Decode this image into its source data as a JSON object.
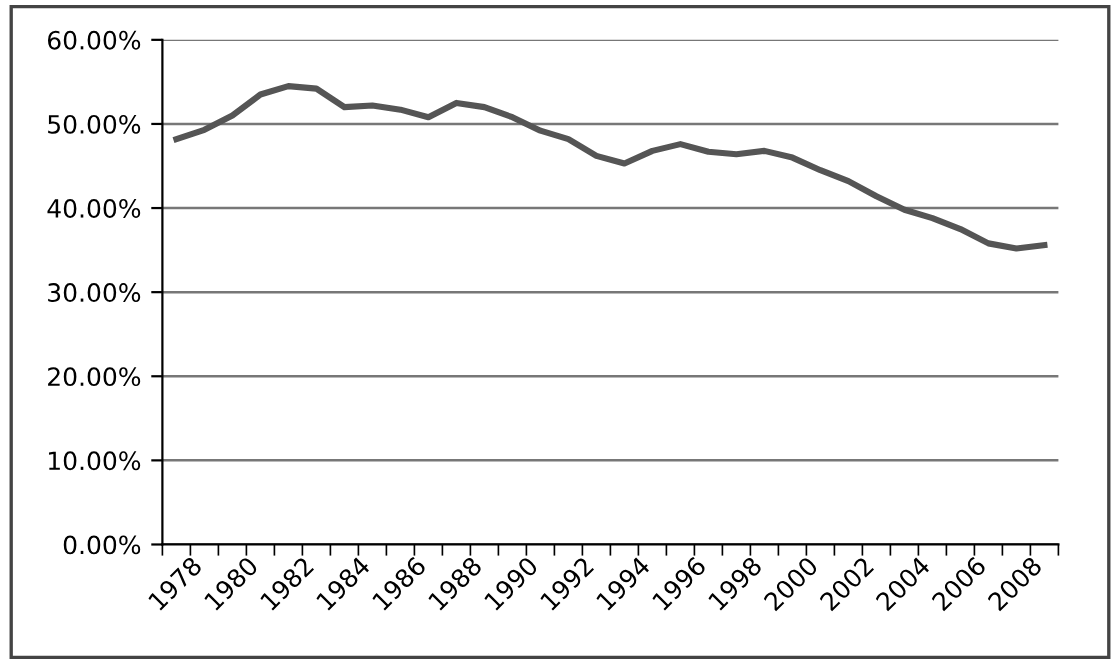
{
  "chart_data": {
    "type": "line",
    "categories": [
      "1978",
      null,
      "1980",
      null,
      "1982",
      null,
      "1984",
      null,
      "1986",
      null,
      "1988",
      null,
      "1990",
      null,
      "1992",
      null,
      "1994",
      null,
      "1996",
      null,
      "1998",
      null,
      "2000",
      null,
      "2002",
      null,
      "2004",
      null,
      "2006",
      null,
      "2008",
      null
    ],
    "series": [
      {
        "color": "#555555",
        "values": [
          48.2,
          49.3,
          51,
          53.5,
          54.5,
          54.2,
          52,
          52.2,
          51.7,
          50.8,
          52.5,
          52,
          50.8,
          49.2,
          48.2,
          46.2,
          45.3,
          46.8,
          47.6,
          46.7,
          46.4,
          46.8,
          46,
          44.5,
          43.2,
          41.4,
          39.8,
          38.8,
          37.5,
          35.8,
          35.2,
          35.6
        ]
      }
    ],
    "ylim": [
      0,
      60
    ],
    "yticks": [
      {
        "value": 0,
        "label": "0.00%"
      },
      {
        "value": 10,
        "label": "10.00%"
      },
      {
        "value": 20,
        "label": "20.00%"
      },
      {
        "value": 30,
        "label": "30.00%"
      },
      {
        "value": 40,
        "label": "40.00%"
      },
      {
        "value": 50,
        "label": "50.00%"
      },
      {
        "value": 60,
        "label": "60.00%"
      }
    ],
    "grid": "y",
    "marker": "none",
    "line_style": "solid"
  }
}
